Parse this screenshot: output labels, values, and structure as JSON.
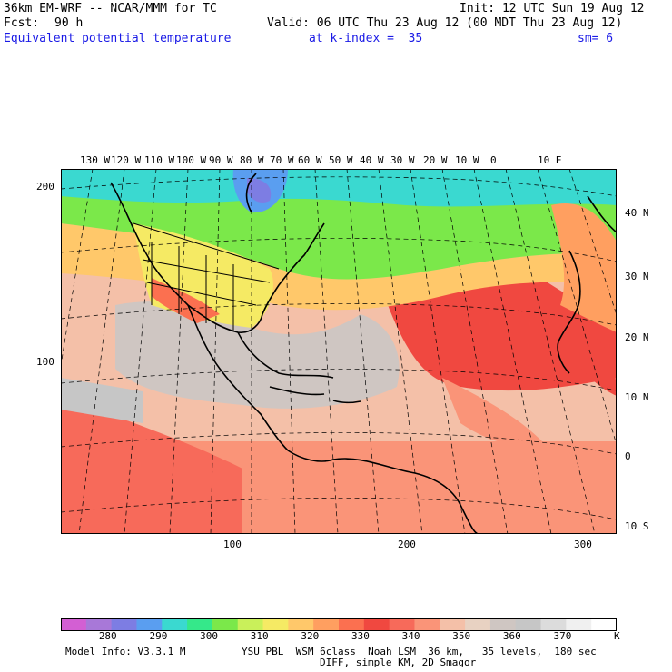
{
  "header": {
    "model": "36km EM-WRF -- NCAR/MMM for TC",
    "init": "Init: 12 UTC Sun 19 Aug 12",
    "fcst_label": "Fcst:",
    "fcst_value": "90 h",
    "valid": "Valid: 06 UTC Thu 23 Aug 12 (00 MDT Thu 23 Aug 12)",
    "field": "Equivalent potential temperature",
    "level": "at k-index =  35",
    "smooth": "sm= 6"
  },
  "map": {
    "lon_labels": [
      "130 W",
      "120 W",
      "110 W",
      "100 W",
      "90 W",
      "80 W",
      "70 W",
      "60 W",
      "50 W",
      "40 W",
      "30 W",
      "20 W",
      "10 W",
      "0",
      "10 E"
    ],
    "lat_labels": [
      "40 N",
      "30 N",
      "20 N",
      "10 N",
      "0",
      "10 S"
    ],
    "y_grid_labels": [
      "200",
      "100"
    ],
    "x_grid_labels": [
      "100",
      "200",
      "300"
    ]
  },
  "colorbar": {
    "ticks": [
      "280",
      "290",
      "300",
      "310",
      "320",
      "330",
      "340",
      "350",
      "360",
      "370"
    ],
    "unit": "K",
    "colors": [
      "#d35fd3",
      "#a878d8",
      "#7d7de3",
      "#5a9ef0",
      "#3ad9d0",
      "#35e88a",
      "#7be84a",
      "#c9f05a",
      "#f5ea64",
      "#ffc86a",
      "#ff9f60",
      "#fb7050",
      "#f04840",
      "#f76a5a",
      "#fa9478",
      "#f4c0a8",
      "#e8d2c2",
      "#cfc6c2",
      "#c6c6c6",
      "#dcdcdc",
      "#f0f0f0",
      "#ffffff"
    ]
  },
  "footer": {
    "model_info": "Model Info: V3.3.1 M",
    "physics": "YSU PBL  WSM 6class  Noah LSM  36 km,   35 levels,  180 sec",
    "diff": "DIFF, simple KM, 2D Smagor"
  }
}
